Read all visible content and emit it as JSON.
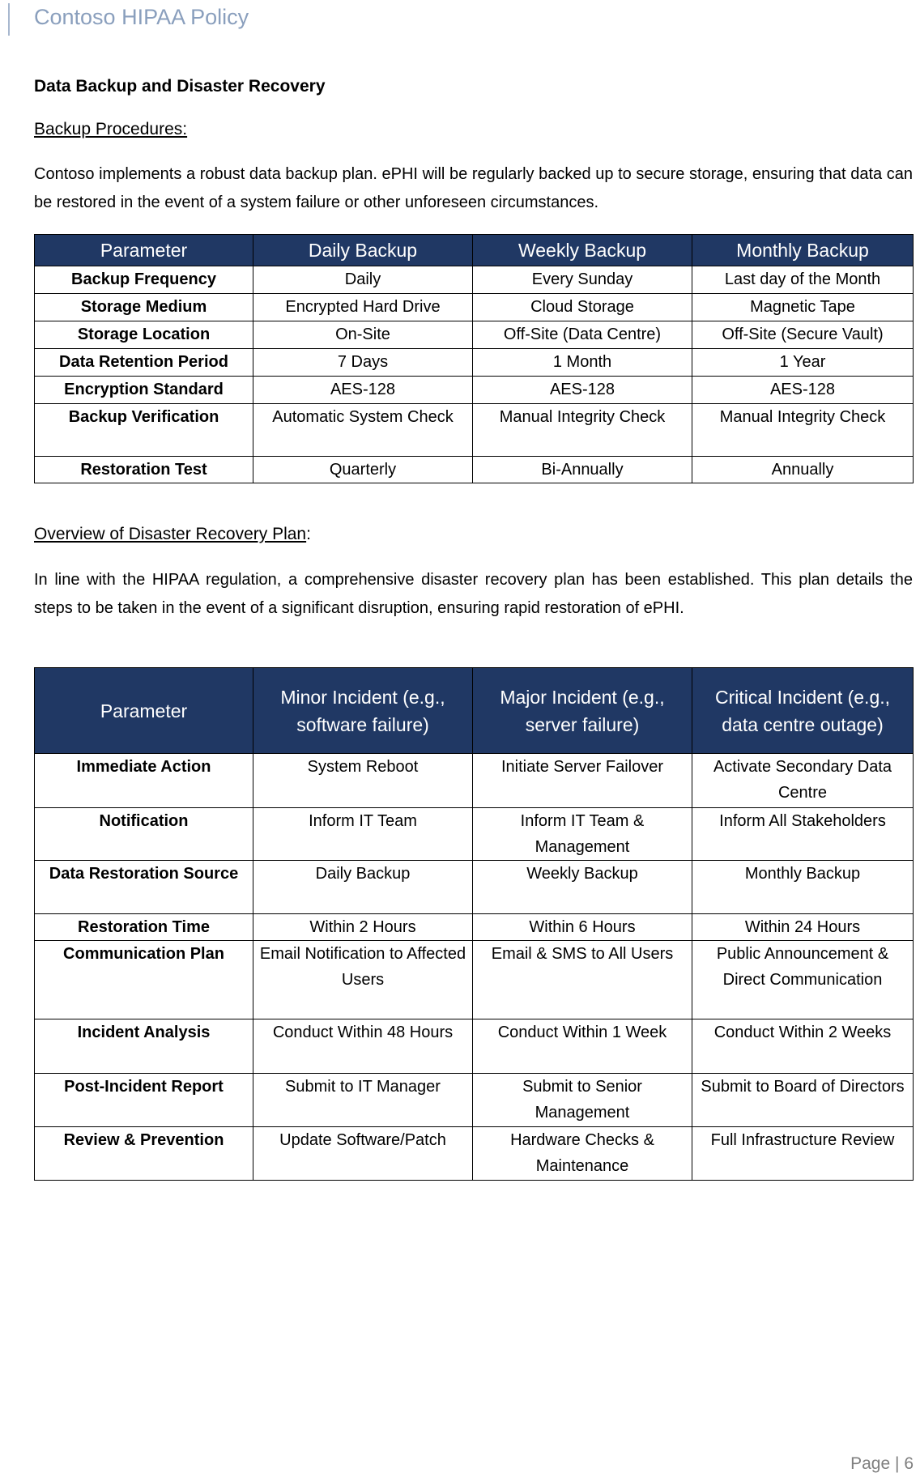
{
  "header": {
    "title": "Contoso HIPAA Policy"
  },
  "section_title": "Data Backup and Disaster Recovery",
  "backup": {
    "heading": "Backup Procedures:",
    "paragraph": "Contoso implements a robust data backup plan. ePHI will be regularly backed up to secure storage, ensuring that data can be restored in the event of a system failure or other unforeseen circumstances.",
    "columns": [
      "Parameter",
      "Daily Backup",
      "Weekly Backup",
      "Monthly Backup"
    ],
    "rows": [
      [
        "Backup Frequency",
        "Daily",
        "Every Sunday",
        "Last day of the Month"
      ],
      [
        "Storage Medium",
        "Encrypted Hard Drive",
        "Cloud Storage",
        "Magnetic Tape"
      ],
      [
        "Storage Location",
        "On-Site",
        "Off-Site (Data Centre)",
        "Off-Site (Secure Vault)"
      ],
      [
        "Data Retention Period",
        "7 Days",
        "1 Month",
        "1 Year"
      ],
      [
        "Encryption Standard",
        "AES-128",
        "AES-128",
        "AES-128"
      ],
      [
        "Backup Verification",
        "Automatic System Check",
        "Manual Integrity Check",
        "Manual Integrity Check"
      ],
      [
        "Restoration Test",
        "Quarterly",
        "Bi-Annually",
        "Annually"
      ]
    ]
  },
  "recovery": {
    "heading": "Overview of Disaster Recovery Plan",
    "heading_suffix": ":",
    "paragraph": "In line with the HIPAA regulation, a comprehensive disaster recovery plan has been established. This plan details the steps to be taken in the event of a significant disruption, ensuring rapid restoration of ePHI.",
    "columns": [
      "Parameter",
      "Minor Incident (e.g., software failure)",
      "Major Incident (e.g., server failure)",
      "Critical Incident (e.g., data centre outage)"
    ],
    "rows": [
      [
        "Immediate Action",
        "System Reboot",
        "Initiate Server Failover",
        "Activate Secondary Data Centre"
      ],
      [
        "Notification",
        "Inform IT Team",
        "Inform IT Team & Management",
        "Inform All Stakeholders"
      ],
      [
        "Data Restoration Source",
        "Daily Backup",
        "Weekly Backup",
        "Monthly Backup"
      ],
      [
        "Restoration Time",
        "Within 2 Hours",
        "Within 6 Hours",
        "Within 24 Hours"
      ],
      [
        "Communication Plan",
        "Email Notification to Affected Users",
        "Email & SMS to All Users",
        "Public Announcement & Direct Communication"
      ],
      [
        "Incident Analysis",
        "Conduct Within 48 Hours",
        "Conduct Within 1 Week",
        "Conduct Within 2 Weeks"
      ],
      [
        "Post-Incident Report",
        "Submit to IT Manager",
        "Submit to Senior Management",
        "Submit to Board of Directors"
      ],
      [
        "Review & Prevention",
        "Update Software/Patch",
        "Hardware Checks & Maintenance",
        "Full Infrastructure Review"
      ]
    ]
  },
  "footer": {
    "page_label": "Page",
    "separator": "|",
    "page_number": "6"
  }
}
